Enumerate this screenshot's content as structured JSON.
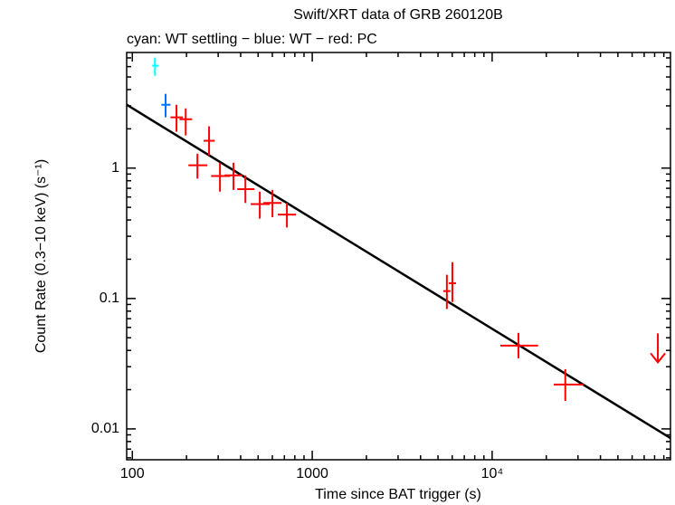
{
  "chart_data": {
    "type": "scatter",
    "title": "Swift/XRT data of GRB 260120B",
    "subtitle": "cyan: WT settling − blue: WT − red: PC",
    "x_label": "Time since BAT trigger (s)",
    "y_label": "Count Rate (0.3−10 keV) (s⁻¹)",
    "log_x": true,
    "log_y": true,
    "xlim": [
      93,
      98000
    ],
    "ylim": [
      0.0058,
      7.7
    ],
    "xticks": [
      100,
      1000,
      {
        "value": 10000,
        "label": "10⁴"
      }
    ],
    "yticks": [
      0.01,
      0.1,
      1
    ],
    "series": [
      {
        "color": "#00ffff",
        "x": [
          133.6
        ],
        "x_low": [
          129
        ],
        "x_high": [
          140
        ],
        "y": [
          6.1
        ],
        "y_low": [
          5.11
        ],
        "y_high": [
          7.03
        ]
      },
      {
        "color": "#0070ff",
        "x": [
          153
        ],
        "x_low": [
          145
        ],
        "x_high": [
          163
        ],
        "y": [
          3.06
        ],
        "y_low": [
          2.45
        ],
        "y_high": [
          3.71
        ]
      },
      {
        "color": "#ff0000",
        "x": [
          176,
          198,
          230,
          267,
          307,
          365,
          425,
          511,
          601,
          723,
          5600,
          6010,
          14000,
          25500
        ],
        "x_low": [
          163,
          183,
          205,
          249,
          274,
          326,
          383,
          455,
          535,
          644,
          5350,
          5740,
          11100,
          22000
        ],
        "x_high": [
          191,
          215,
          261,
          287,
          349,
          410,
          477,
          581,
          675,
          812,
          5870,
          6300,
          18000,
          32200
        ],
        "y": [
          2.45,
          2.37,
          1.05,
          1.62,
          0.87,
          0.88,
          0.69,
          0.53,
          0.54,
          0.44,
          0.114,
          0.131,
          0.0435,
          0.0219
        ],
        "y_low": [
          1.9,
          1.78,
          0.83,
          1.25,
          0.66,
          0.68,
          0.54,
          0.41,
          0.42,
          0.35,
          0.083,
          0.094,
          0.0348,
          0.0164
        ],
        "y_high": [
          3.06,
          2.87,
          1.29,
          2.09,
          1.1,
          1.1,
          0.88,
          0.66,
          0.68,
          0.54,
          0.152,
          0.19,
          0.0545,
          0.0287
        ]
      }
    ],
    "upper_limits": {
      "color": "#ff0000",
      "x": [
        83400
      ],
      "y": [
        0.054
      ]
    },
    "fit": {
      "color": "#000000",
      "x": [
        93,
        98000
      ],
      "y": [
        3.06,
        0.0085
      ]
    }
  }
}
